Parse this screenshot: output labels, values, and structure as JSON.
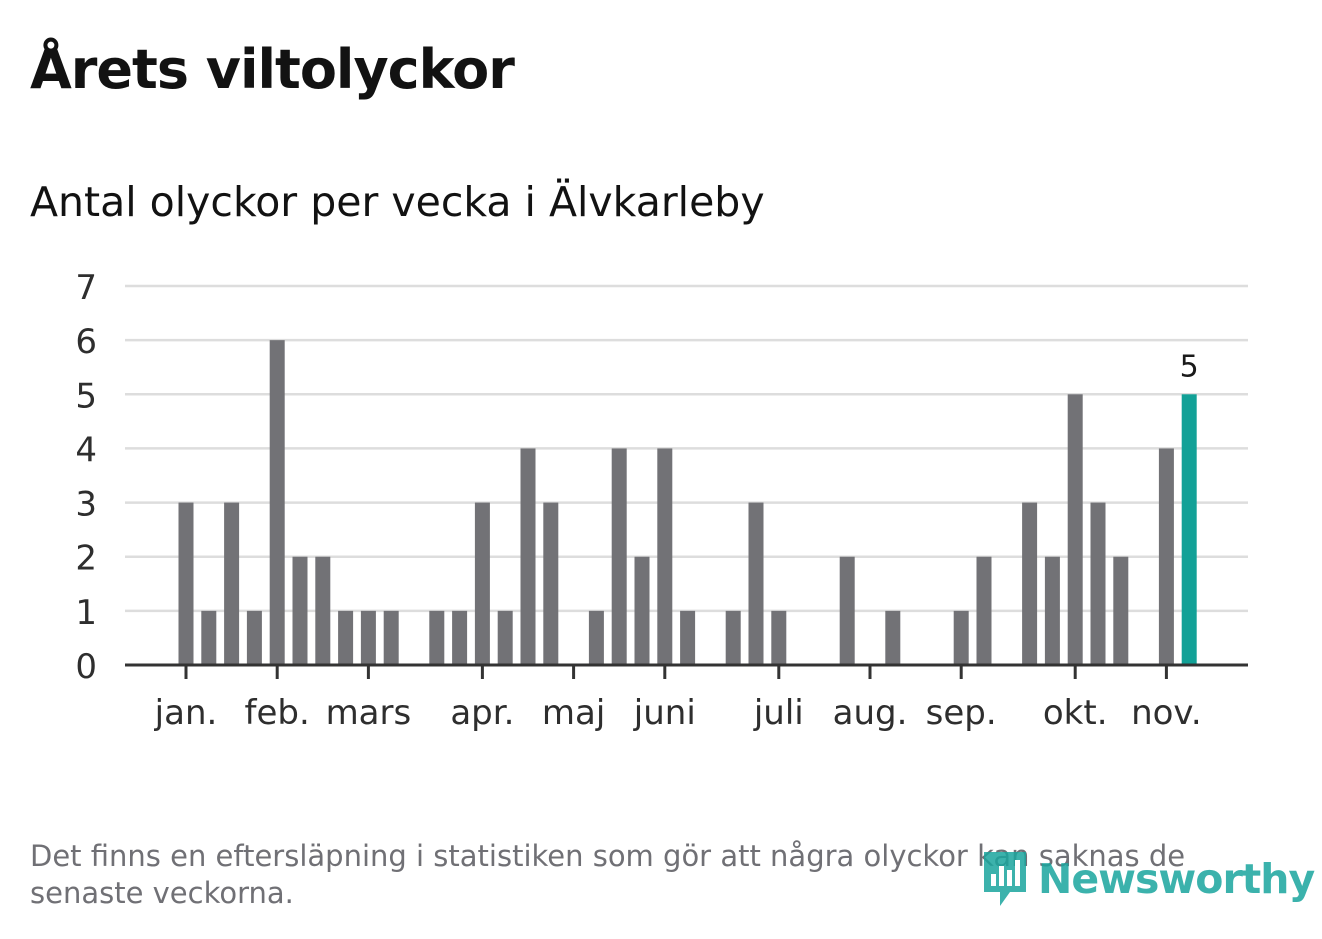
{
  "title": "Årets viltolyckor",
  "subtitle": "Antal olyckor per vecka i Älvkarleby",
  "footnote": "Det finns en eftersläpning i statistiken som gör att några olyckor kan saknas de senaste veckorna.",
  "brand": {
    "name": "Newsworthy",
    "icon": "newsworthy-logo-icon",
    "color": "#1aa59e"
  },
  "colors": {
    "bar": "#727276",
    "highlight": "#12a197",
    "grid": "#dddddd",
    "axis": "#333333",
    "text": "#2e2e2e"
  },
  "chart_data": {
    "type": "bar",
    "title": "Antal olyckor per vecka i Älvkarleby",
    "xlabel": "",
    "ylabel": "",
    "ylim": [
      0,
      7
    ],
    "yticks": [
      "0",
      "1",
      "2",
      "3",
      "4",
      "5",
      "6",
      "7"
    ],
    "grid": true,
    "x_tick_labels": [
      "jan.",
      "feb.",
      "mars",
      "apr.",
      "maj",
      "juni",
      "juli",
      "aug.",
      "sep.",
      "okt.",
      "nov."
    ],
    "x_tick_weeks": [
      1,
      5,
      9,
      14,
      18,
      22,
      27,
      31,
      35,
      40,
      44
    ],
    "weeks": [
      1,
      2,
      3,
      4,
      5,
      6,
      7,
      8,
      9,
      10,
      11,
      12,
      13,
      14,
      15,
      16,
      17,
      18,
      19,
      20,
      21,
      22,
      23,
      24,
      25,
      26,
      27,
      28,
      29,
      30,
      31,
      32,
      33,
      34,
      35,
      36,
      37,
      38,
      39,
      40,
      41,
      42,
      43,
      44,
      45
    ],
    "values": [
      3,
      1,
      3,
      1,
      6,
      2,
      2,
      1,
      1,
      1,
      0,
      1,
      1,
      3,
      1,
      4,
      3,
      0,
      1,
      4,
      2,
      4,
      1,
      0,
      1,
      3,
      1,
      0,
      0,
      2,
      0,
      1,
      0,
      0,
      1,
      2,
      0,
      3,
      2,
      5,
      3,
      2,
      0,
      4,
      5
    ],
    "highlight_index": 44,
    "highlight_label": "5"
  }
}
